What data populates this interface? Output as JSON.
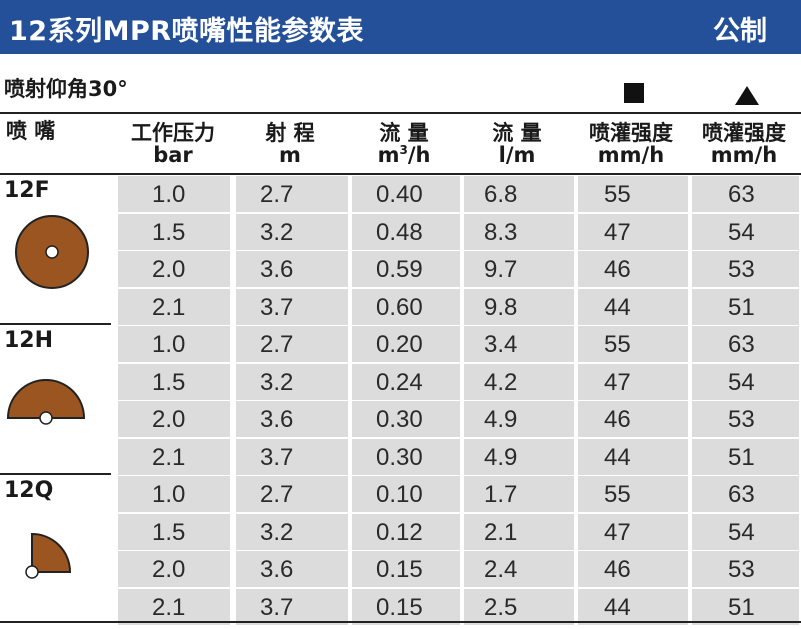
{
  "header": {
    "title": "12系列MPR喷嘴性能参数表",
    "unit": "公制"
  },
  "subtitle": "喷射仰角30°",
  "columns": [
    {
      "l1": "喷 嘴",
      "l2": ""
    },
    {
      "l1": "工作压力",
      "l2": "bar"
    },
    {
      "l1": "射 程",
      "l2": "m"
    },
    {
      "l1": "流 量",
      "l2": "m³/h"
    },
    {
      "l1": "流 量",
      "l2": "l/m"
    },
    {
      "l1": "喷灌强度",
      "l2": "mm/h"
    },
    {
      "l1": "喷灌强度",
      "l2": "mm/h"
    }
  ],
  "groups": [
    {
      "name": "12F",
      "icon": "full-circle-nozzle-icon",
      "rows": [
        [
          "1.0",
          "2.7",
          "0.40",
          "6.8",
          "55",
          "63"
        ],
        [
          "1.5",
          "3.2",
          "0.48",
          "8.3",
          "47",
          "54"
        ],
        [
          "2.0",
          "3.6",
          "0.59",
          "9.7",
          "46",
          "53"
        ],
        [
          "2.1",
          "3.7",
          "0.60",
          "9.8",
          "44",
          "51"
        ]
      ]
    },
    {
      "name": "12H",
      "icon": "half-circle-nozzle-icon",
      "rows": [
        [
          "1.0",
          "2.7",
          "0.20",
          "3.4",
          "55",
          "63"
        ],
        [
          "1.5",
          "3.2",
          "0.24",
          "4.2",
          "47",
          "54"
        ],
        [
          "2.0",
          "3.6",
          "0.30",
          "4.9",
          "46",
          "53"
        ],
        [
          "2.1",
          "3.7",
          "0.30",
          "4.9",
          "44",
          "51"
        ]
      ]
    },
    {
      "name": "12Q",
      "icon": "quarter-circle-nozzle-icon",
      "rows": [
        [
          "1.0",
          "2.7",
          "0.10",
          "1.7",
          "55",
          "63"
        ],
        [
          "1.5",
          "3.2",
          "0.12",
          "2.1",
          "47",
          "54"
        ],
        [
          "2.0",
          "3.6",
          "0.15",
          "2.4",
          "46",
          "53"
        ],
        [
          "2.1",
          "3.7",
          "0.15",
          "2.5",
          "44",
          "51"
        ]
      ]
    }
  ],
  "colors": {
    "title_bar": "#24509a",
    "cell_bg": "#dcdcdc",
    "nozzle": "#9a5520"
  }
}
